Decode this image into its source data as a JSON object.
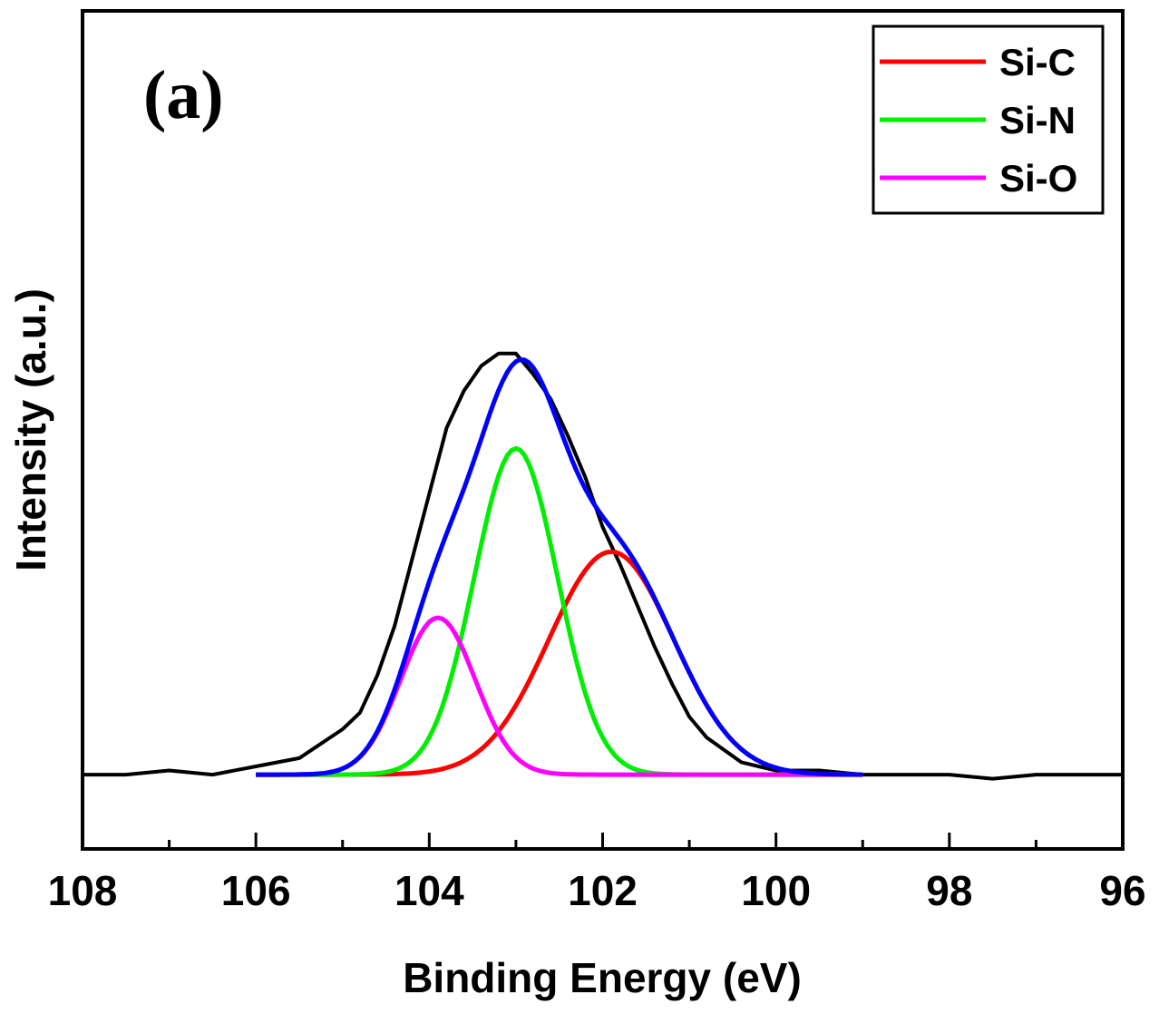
{
  "chart_data": {
    "type": "line",
    "panel_label": "(a)",
    "xlabel": "Binding Energy (eV)",
    "ylabel": "Intensity (a.u.)",
    "xlim": [
      108,
      96
    ],
    "x_reversed": true,
    "ylim": [
      -0.18,
      1.85
    ],
    "y_ticks_shown": false,
    "grid": false,
    "legend_position": "top-right",
    "x_ticks": [
      "108",
      "106",
      "104",
      "102",
      "100",
      "98",
      "96"
    ],
    "legend": [
      {
        "label": "Si-C",
        "color": "#ff0000"
      },
      {
        "label": "Si-N",
        "color": "#00ee00"
      },
      {
        "label": "Si-O",
        "color": "#ff00ff"
      }
    ],
    "series": [
      {
        "name": "Si-C",
        "color": "#ff0000",
        "center": 101.9,
        "height": 0.54,
        "sigma": 0.72,
        "x_range": [
          106,
          99
        ]
      },
      {
        "name": "Si-N",
        "color": "#00ee00",
        "center": 103.0,
        "height": 0.79,
        "sigma": 0.48,
        "x_range": [
          106,
          99
        ]
      },
      {
        "name": "Si-O",
        "color": "#ff00ff",
        "center": 103.9,
        "height": 0.38,
        "sigma": 0.43,
        "x_range": [
          106,
          99
        ]
      }
    ],
    "envelope": {
      "color": "#0000ff",
      "x_range": [
        106,
        99
      ]
    },
    "raw_data": {
      "color": "#000000",
      "x": [
        108.0,
        107.5,
        107.0,
        106.5,
        106.0,
        105.5,
        105.0,
        104.8,
        104.6,
        104.4,
        104.2,
        104.0,
        103.8,
        103.6,
        103.4,
        103.2,
        103.0,
        102.8,
        102.6,
        102.4,
        102.2,
        102.0,
        101.8,
        101.6,
        101.4,
        101.2,
        101.0,
        100.8,
        100.6,
        100.4,
        100.2,
        100.0,
        99.5,
        99.0,
        98.5,
        98.0,
        97.5,
        97.0,
        96.5,
        96.0
      ],
      "y": [
        0.0,
        0.0,
        0.01,
        0.0,
        0.02,
        0.04,
        0.11,
        0.15,
        0.24,
        0.36,
        0.52,
        0.68,
        0.84,
        0.93,
        0.99,
        1.02,
        1.02,
        0.97,
        0.91,
        0.82,
        0.72,
        0.6,
        0.51,
        0.41,
        0.31,
        0.22,
        0.14,
        0.09,
        0.06,
        0.03,
        0.02,
        0.01,
        0.01,
        0.0,
        0.0,
        0.0,
        -0.01,
        0.0,
        0.0,
        0.0
      ]
    }
  }
}
